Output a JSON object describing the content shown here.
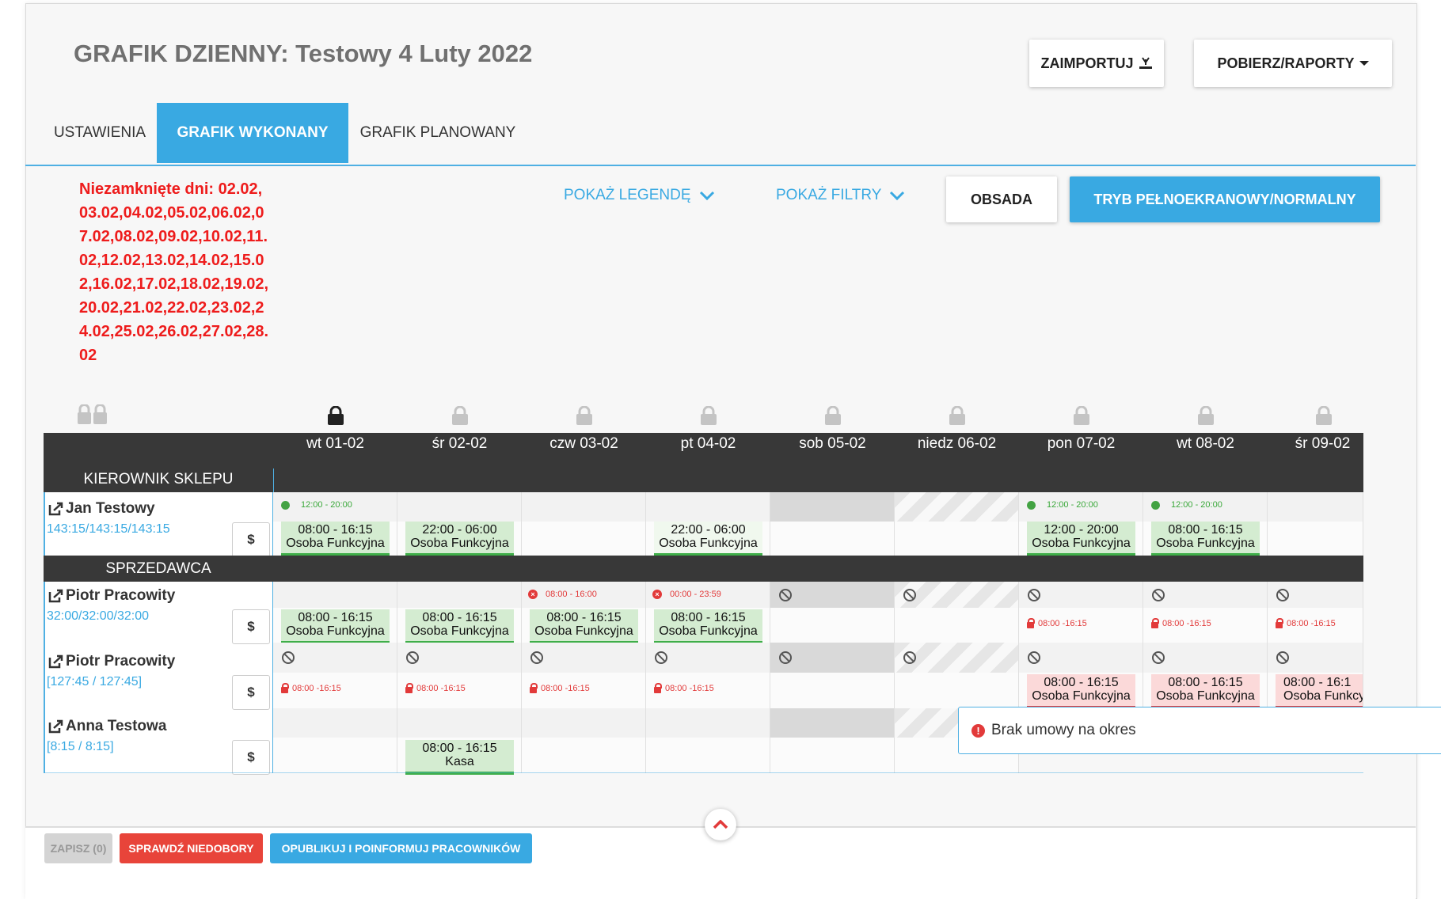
{
  "page": {
    "title": "GRAFIK DZIENNY: Testowy 4 Luty 2022"
  },
  "header": {
    "import_label": "ZAIMPORTUJ",
    "reports_label": "POBIERZ/RAPORTY"
  },
  "tabs": [
    {
      "label": "USTAWIENIA"
    },
    {
      "label": "GRAFIK WYKONANY",
      "active": true
    },
    {
      "label": "GRAFIK PLANOWANY"
    }
  ],
  "unclosed_days": "Niezamknięte dni: 02.02,03.02,04.02,05.02,06.02,07.02,08.02,09.02,10.02,11.02,12.02,13.02,14.02,15.02,16.02,17.02,18.02,19.02,20.02,21.02,22.02,23.02,24.02,25.02,26.02,27.02,28.02",
  "controls": {
    "legend_label": "POKAŻ LEGENDĘ",
    "filters_label": "POKAŻ FILTRY",
    "obsada_label": "OBSADA",
    "fullscreen_label": "TRYB PEŁNOEKRANOWY/NORMALNY"
  },
  "days": [
    "wt 01-02",
    "śr 02-02",
    "czw 03-02",
    "pt 04-02",
    "sob 05-02",
    "niedz 06-02",
    "pon 07-02",
    "wt 08-02",
    "śr 09-02"
  ],
  "sections": [
    {
      "label": "KIEROWNIK SKLEPU"
    },
    {
      "label": "SPRZEDAWCA"
    }
  ],
  "employees": [
    {
      "name": "Jan Testowy",
      "hours": "143:15/143:15/143:15"
    },
    {
      "name": "Piotr Pracowity",
      "hours": "32:00/32:00/32:00"
    },
    {
      "name": "Piotr Pracowity",
      "hours": "[127:45 / 127:45]"
    },
    {
      "name": "Anna Testowa",
      "hours": "[8:15 / 8:15]"
    }
  ],
  "currency_symbol": "$",
  "cells": {
    "avail_12_20": "12:00 - 20:00",
    "unavail_0800_1600": "08:00 - 16:00",
    "unavail_0000_2359": "00:00 - 23:59",
    "locked_range": "08:00 -16:15",
    "shift_0800_1615": "08:00 - 16:15",
    "shift_2200_0600": "22:00 - 06:00",
    "shift_1200_2000": "12:00 - 20:00",
    "shift_cut": "08:00 - 16:1",
    "role_funkcyjna": "Osoba Funkcyjna",
    "role_funkcyjna_cut": "Osoba Funkcy",
    "role_kasa": "Kasa"
  },
  "toast": {
    "message": "Brak umowy na okres"
  },
  "footer": {
    "save_label": "ZAPISZ (0)",
    "check_label": "SPRAWDŹ NIEDOBORY",
    "publish_label": "OPUBLIKUJ I POINFORMUJ PRACOWNIKÓW"
  },
  "colors": {
    "accent": "#39a9e2",
    "error": "#ee1c1c",
    "shift_green": "#d4ecd1",
    "shift_red": "#fbd9d9",
    "dark_header": "#383838"
  }
}
